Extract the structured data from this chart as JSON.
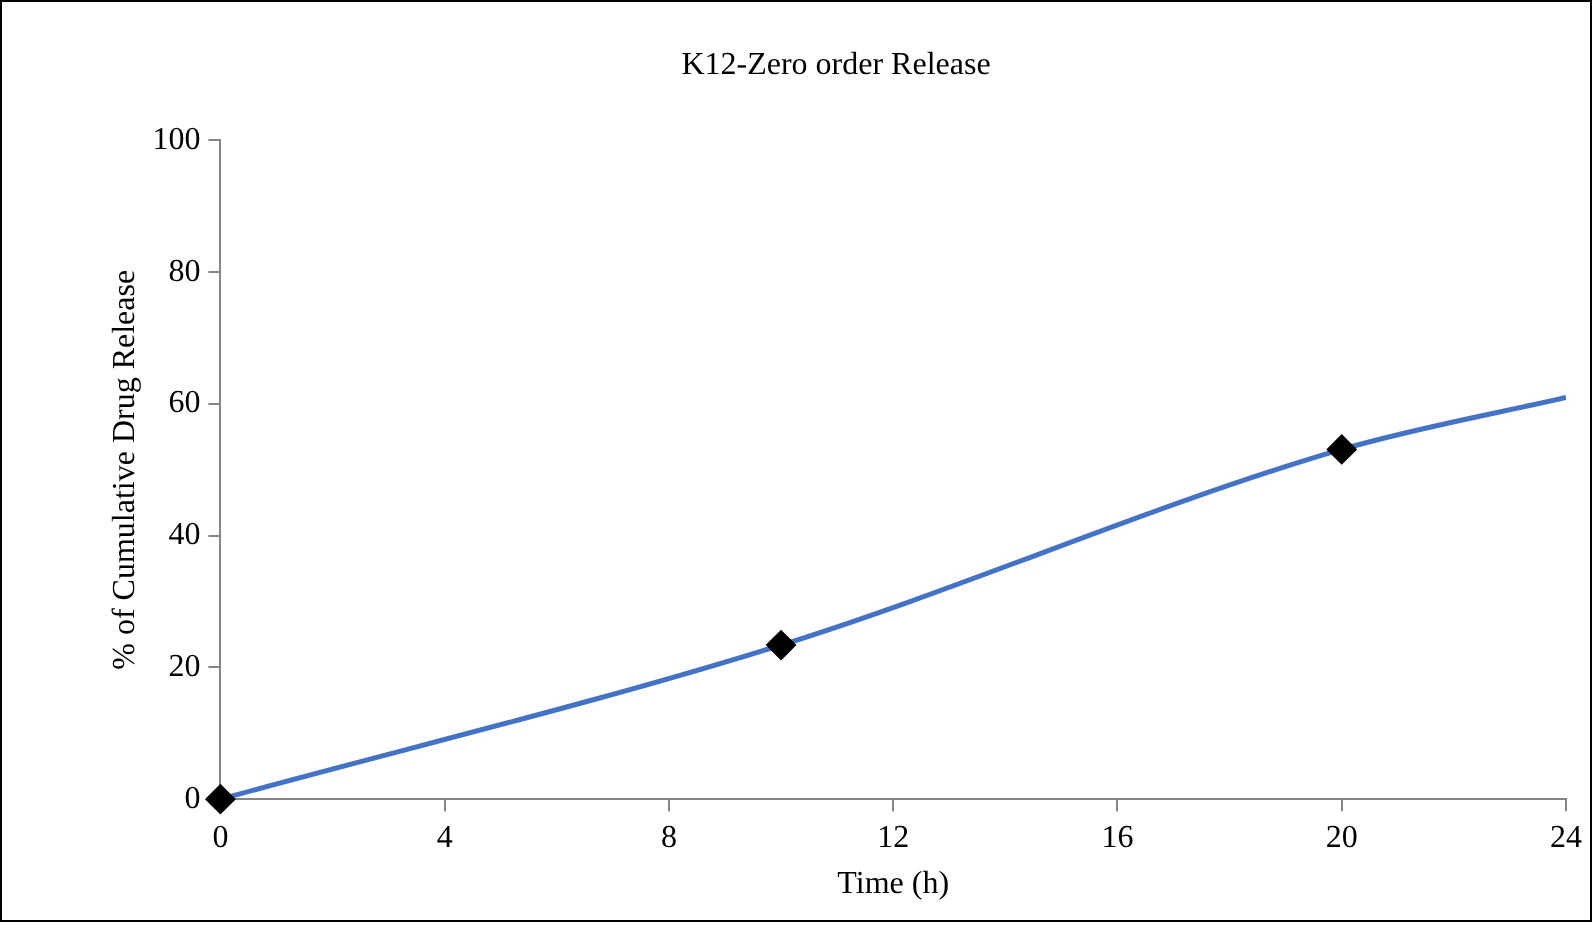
{
  "chart_data": {
    "type": "line",
    "title": "K12-Zero order Release",
    "xlabel": "Time (h)",
    "ylabel": "% of Cumulative Drug Release",
    "series": [
      {
        "type": "line",
        "color": "#4472c4",
        "x": [
          0,
          10,
          20,
          24
        ],
        "values": [
          0,
          23.4,
          53.1,
          61
        ],
        "marker": "none"
      },
      {
        "type": "scatter",
        "color": "#000000",
        "x": [
          0,
          10,
          20
        ],
        "values": [
          0,
          23.4,
          53.1
        ],
        "marker": "diamond"
      }
    ],
    "xlim": [
      0,
      24
    ],
    "xticks": [
      0,
      4,
      8,
      12,
      16,
      20,
      24
    ],
    "ylim": [
      0,
      100
    ],
    "yticks": [
      0,
      20,
      40,
      60,
      80,
      100
    ],
    "grid": false,
    "legend": false
  }
}
